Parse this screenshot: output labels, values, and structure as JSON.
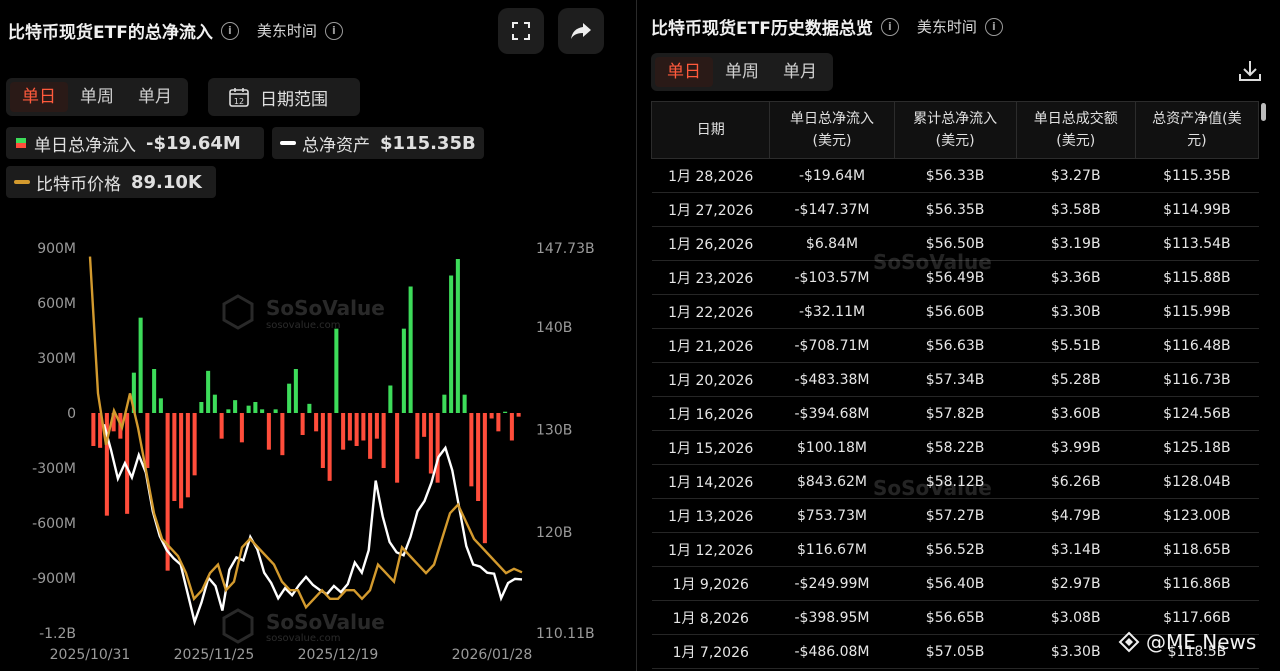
{
  "left_panel": {
    "title": "比特币现货ETF的总净流入",
    "timezone": "美东时间",
    "period_tabs": [
      "单日",
      "单周",
      "单月"
    ],
    "active_tab": "单日",
    "range_button": "日期范围",
    "calendar_day": "12",
    "legend": {
      "daily_label": "单日总净流入",
      "daily_value": "-$19.64M",
      "assets_label": "总净资产",
      "assets_value": "$115.35B",
      "price_label": "比特币价格",
      "price_value": "89.10K"
    },
    "watermark_brand": "SoSoValue",
    "watermark_site": "sosovalue.com"
  },
  "right_panel": {
    "title": "比特币现货ETF历史数据总览",
    "timezone": "美东时间",
    "period_tabs": [
      "单日",
      "单周",
      "单月"
    ],
    "active_tab": "单日",
    "columns": [
      "日期",
      "单日总净流入\n(美元)",
      "累计总净流入\n(美元)",
      "单日总成交额\n(美元)",
      "总资产净值(美\n元)"
    ],
    "rows": [
      {
        "date": "1月 28,2026",
        "inflow": "-$19.64M",
        "cum": "$56.33B",
        "vol": "$3.27B",
        "nav": "$115.35B",
        "sign": "neg"
      },
      {
        "date": "1月 27,2026",
        "inflow": "-$147.37M",
        "cum": "$56.35B",
        "vol": "$3.58B",
        "nav": "$114.99B",
        "sign": "neg"
      },
      {
        "date": "1月 26,2026",
        "inflow": "$6.84M",
        "cum": "$56.50B",
        "vol": "$3.19B",
        "nav": "$113.54B",
        "sign": "pos"
      },
      {
        "date": "1月 23,2026",
        "inflow": "-$103.57M",
        "cum": "$56.49B",
        "vol": "$3.36B",
        "nav": "$115.88B",
        "sign": "neg"
      },
      {
        "date": "1月 22,2026",
        "inflow": "-$32.11M",
        "cum": "$56.60B",
        "vol": "$3.30B",
        "nav": "$115.99B",
        "sign": "neg"
      },
      {
        "date": "1月 21,2026",
        "inflow": "-$708.71M",
        "cum": "$56.63B",
        "vol": "$5.51B",
        "nav": "$116.48B",
        "sign": "neg"
      },
      {
        "date": "1月 20,2026",
        "inflow": "-$483.38M",
        "cum": "$57.34B",
        "vol": "$5.28B",
        "nav": "$116.73B",
        "sign": "neg"
      },
      {
        "date": "1月 16,2026",
        "inflow": "-$394.68M",
        "cum": "$57.82B",
        "vol": "$3.60B",
        "nav": "$124.56B",
        "sign": "neg"
      },
      {
        "date": "1月 15,2026",
        "inflow": "$100.18M",
        "cum": "$58.22B",
        "vol": "$3.99B",
        "nav": "$125.18B",
        "sign": "pos"
      },
      {
        "date": "1月 14,2026",
        "inflow": "$843.62M",
        "cum": "$58.12B",
        "vol": "$6.26B",
        "nav": "$128.04B",
        "sign": "pos"
      },
      {
        "date": "1月 13,2026",
        "inflow": "$753.73M",
        "cum": "$57.27B",
        "vol": "$4.79B",
        "nav": "$123.00B",
        "sign": "pos"
      },
      {
        "date": "1月 12,2026",
        "inflow": "$116.67M",
        "cum": "$56.52B",
        "vol": "$3.14B",
        "nav": "$118.65B",
        "sign": "pos"
      },
      {
        "date": "1月 9,2026",
        "inflow": "-$249.99M",
        "cum": "$56.40B",
        "vol": "$2.97B",
        "nav": "$116.86B",
        "sign": "neg"
      },
      {
        "date": "1月 8,2026",
        "inflow": "-$398.95M",
        "cum": "$56.65B",
        "vol": "$3.08B",
        "nav": "$117.66B",
        "sign": "neg"
      },
      {
        "date": "1月 7,2026",
        "inflow": "-$486.08M",
        "cum": "$57.05B",
        "vol": "$3.30B",
        "nav": "$118.5B",
        "sign": "neg"
      }
    ]
  },
  "news_brand": "@ME News",
  "colors": {
    "pos": "#3ddc5a",
    "neg": "#ff4d3b",
    "price": "#d39a2e",
    "assets": "#ffffff",
    "accent": "#ff5a3c"
  },
  "chart_data": {
    "type": "bar",
    "left_axis": {
      "ticks": [
        "900M",
        "600M",
        "300M",
        "0",
        "-300M",
        "-600M",
        "-900M",
        "-1.2B"
      ],
      "range": [
        -1200,
        900
      ],
      "unit": "M"
    },
    "right_axis": {
      "ticks": [
        "147.73B",
        "140B",
        "130B",
        "120B",
        "110.11B"
      ],
      "range": [
        110.11,
        147.73
      ],
      "unit": "B"
    },
    "x_ticks": [
      "2025/10/31",
      "2025/11/25",
      "2025/12/19",
      "2026/01/28"
    ],
    "daily_net_inflow_M": [
      -180,
      -190,
      -560,
      -100,
      -140,
      -550,
      220,
      520,
      -300,
      240,
      80,
      -860,
      -480,
      -520,
      -460,
      -340,
      60,
      230,
      100,
      -140,
      20,
      70,
      -160,
      40,
      60,
      20,
      -200,
      20,
      -230,
      160,
      240,
      -120,
      50,
      -100,
      -300,
      -370,
      460,
      -200,
      -150,
      -180,
      -150,
      -250,
      -140,
      -300,
      150,
      -380,
      460,
      690,
      -250,
      -130,
      -330,
      -380,
      100,
      750,
      840,
      100,
      -400,
      -480,
      -710,
      -30,
      -100,
      7,
      -150,
      -20
    ],
    "total_net_assets_B": [
      130.5,
      128.0,
      125.2,
      126.7,
      125.3,
      127.5,
      125.8,
      122.0,
      119.6,
      118.2,
      117.4,
      116.8,
      114.0,
      111.2,
      113.1,
      115.5,
      114.7,
      112.3,
      116.3,
      117.5,
      117.2,
      119.5,
      118.3,
      116.0,
      115.0,
      113.5,
      114.5,
      113.8,
      114.8,
      115.6,
      114.8,
      114.3,
      113.9,
      114.7,
      114.1,
      114.9,
      117.0,
      116.0,
      118.2,
      125.0,
      121.5,
      119.0,
      118.0,
      117.7,
      119.5,
      122.0,
      123.0,
      124.8,
      127.3,
      128.2,
      126.0,
      122.3,
      118.6,
      116.8,
      116.6,
      116.0,
      115.9,
      113.5,
      115.0,
      115.4,
      115.35
    ],
    "btc_price_K": [
      126,
      110,
      104,
      108,
      106,
      110,
      106,
      101,
      96,
      93,
      92,
      91,
      89,
      86,
      87,
      89,
      90,
      87,
      88,
      92,
      93,
      92,
      91,
      90,
      88,
      87,
      87,
      85,
      86,
      87,
      86,
      86,
      87,
      87,
      86,
      87,
      90,
      89,
      88,
      92,
      91,
      90,
      89,
      90,
      93,
      96,
      97,
      95,
      93,
      92,
      91,
      90,
      89,
      89.5,
      89.1
    ]
  }
}
